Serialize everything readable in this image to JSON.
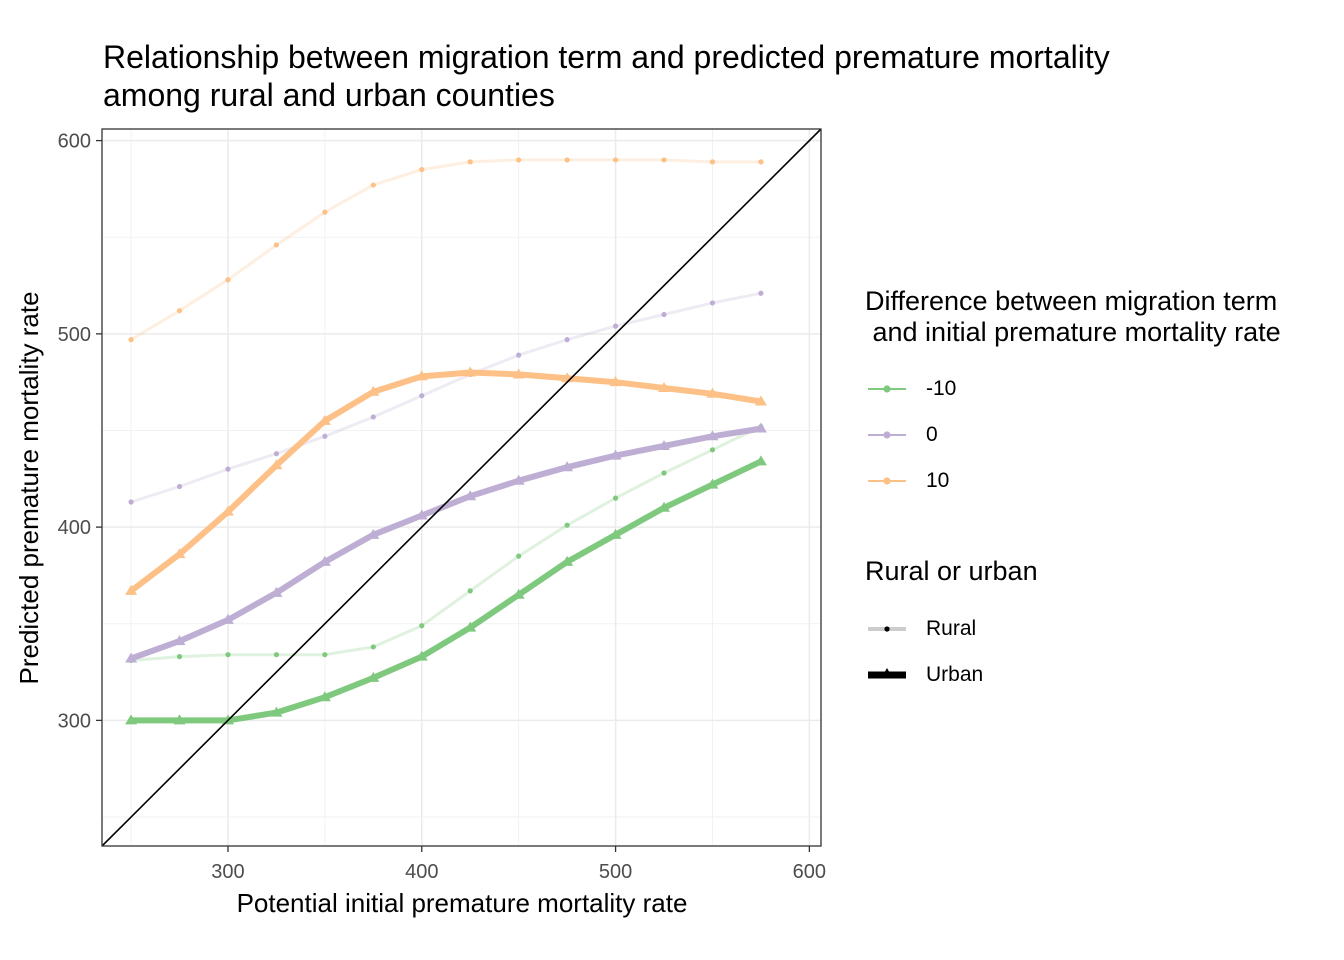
{
  "title_lines": [
    "Relationship between migration term and predicted premature mortality",
    "among rural and urban counties"
  ],
  "legend": {
    "difference_title": "Difference between migration term\n and initial premature mortality rate",
    "difference_items": [
      {
        "label": "-10",
        "color": "#7fc97f"
      },
      {
        "label": "0",
        "color": "#beaed4"
      },
      {
        "label": "10",
        "color": "#fdc086"
      }
    ],
    "rural_urban_title": "Rural or urban",
    "rural_urban_items": [
      {
        "label": "Rural",
        "style": "thin-point"
      },
      {
        "label": "Urban",
        "style": "thick-triangle"
      }
    ]
  },
  "chart_data": {
    "type": "line",
    "title": "Relationship between migration term and predicted premature mortality among rural and urban counties",
    "xlabel": "Potential initial premature mortality rate",
    "ylabel": "Predicted premature mortality rate",
    "xlim": [
      235,
      606
    ],
    "ylim": [
      235,
      606
    ],
    "x_ticks": [
      300,
      400,
      500,
      600
    ],
    "y_ticks": [
      300,
      400,
      500,
      600
    ],
    "grid": true,
    "legend_position": "right",
    "reference_line": "y = x",
    "x": [
      250,
      275,
      300,
      325,
      350,
      375,
      400,
      425,
      450,
      475,
      500,
      525,
      550,
      575
    ],
    "series": [
      {
        "difference": "-10",
        "area": "Rural",
        "color": "#7fc97f",
        "values": [
          331,
          333,
          334,
          334,
          334,
          338,
          349,
          367,
          385,
          401,
          415,
          428,
          440,
          452
        ]
      },
      {
        "difference": "-10",
        "area": "Urban",
        "color": "#7fc97f",
        "values": [
          300,
          300,
          300,
          304,
          312,
          322,
          333,
          348,
          365,
          382,
          396,
          410,
          422,
          434
        ]
      },
      {
        "difference": "0",
        "area": "Rural",
        "color": "#beaed4",
        "values": [
          413,
          421,
          430,
          438,
          447,
          457,
          468,
          479,
          489,
          497,
          504,
          510,
          516,
          521
        ]
      },
      {
        "difference": "0",
        "area": "Urban",
        "color": "#beaed4",
        "values": [
          332,
          341,
          352,
          366,
          382,
          396,
          406,
          416,
          424,
          431,
          437,
          442,
          447,
          451
        ]
      },
      {
        "difference": "10",
        "area": "Rural",
        "color": "#fdc086",
        "values": [
          497,
          512,
          528,
          546,
          563,
          577,
          585,
          589,
          590,
          590,
          590,
          590,
          589,
          589
        ]
      },
      {
        "difference": "10",
        "area": "Urban",
        "color": "#fdc086",
        "values": [
          367,
          386,
          408,
          432,
          455,
          470,
          478,
          480,
          479,
          477,
          475,
          472,
          469,
          465
        ]
      }
    ]
  }
}
